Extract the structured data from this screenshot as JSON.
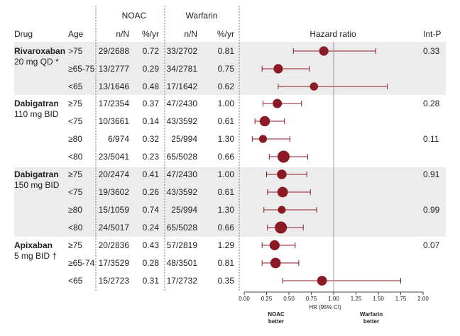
{
  "chart_data": {
    "type": "forest",
    "group_headers": {
      "noac": "NOAC",
      "warfarin": "Warfarin"
    },
    "columns": {
      "drug": "Drug",
      "age": "Age",
      "noac_n": "n/N",
      "noac_rate": "%/yr",
      "warf_n": "n/N",
      "warf_rate": "%/yr",
      "hr": "Hazard ratio",
      "intp": "Int-P"
    },
    "x_axis": {
      "ticks": [
        "0.00",
        "0.25",
        "0.50",
        "0.75",
        "1.00",
        "1.25",
        "1.50",
        "1.75",
        "2.00"
      ],
      "xlim": [
        0,
        2
      ],
      "reference": 1.0,
      "label": "HR (95% CI)",
      "left_note": [
        "NOAC",
        "better"
      ],
      "right_note": [
        "Warfarin",
        "better"
      ]
    },
    "marker_color": "#8b1a24",
    "band_color": "#ececec",
    "groups": [
      {
        "drug": "Rivaroxaban",
        "dose": "20 mg QD *",
        "shaded": true
      },
      {
        "drug": "Dabigatran",
        "dose": "110 mg BID",
        "shaded": false
      },
      {
        "drug": "Dabigatran",
        "dose": "150 mg BID",
        "shaded": true
      },
      {
        "drug": "Apixaban",
        "dose": "5 mg BID †",
        "shaded": false
      }
    ],
    "rows": [
      {
        "group": 0,
        "age": ">75",
        "noac_n": "29/2688",
        "noac_rate": "0.72",
        "warf_n": "33/2702",
        "warf_rate": "0.81",
        "hr": 0.89,
        "lo": 0.55,
        "hi": 1.47,
        "size": 0.62,
        "intp": "0.33"
      },
      {
        "group": 0,
        "age": "≥65-75",
        "noac_n": "13/2777",
        "noac_rate": "0.29",
        "warf_n": "34/2781",
        "warf_rate": "0.75",
        "hr": 0.38,
        "lo": 0.2,
        "hi": 0.73,
        "size": 0.62,
        "intp": ""
      },
      {
        "group": 0,
        "age": "<65",
        "noac_n": "13/1646",
        "noac_rate": "0.48",
        "warf_n": "17/1642",
        "warf_rate": "0.62",
        "hr": 0.78,
        "lo": 0.38,
        "hi": 1.6,
        "size": 0.45,
        "intp": ""
      },
      {
        "group": 1,
        "age": "≥75",
        "noac_n": "17/2354",
        "noac_rate": "0.37",
        "warf_n": "47/2430",
        "warf_rate": "1.00",
        "hr": 0.37,
        "lo": 0.21,
        "hi": 0.64,
        "size": 0.6,
        "intp": "0.28"
      },
      {
        "group": 1,
        "age": "<75",
        "noac_n": "10/3661",
        "noac_rate": "0.14",
        "warf_n": "43/3592",
        "warf_rate": "0.61",
        "hr": 0.23,
        "lo": 0.12,
        "hi": 0.45,
        "size": 0.75,
        "intp": ""
      },
      {
        "group": 1,
        "age": "≥80",
        "noac_n": "6/974",
        "noac_rate": "0.32",
        "warf_n": "25/994",
        "warf_rate": "1.30",
        "hr": 0.21,
        "lo": 0.09,
        "hi": 0.51,
        "size": 0.42,
        "intp": "0.11"
      },
      {
        "group": 1,
        "age": "<80",
        "noac_n": "23/5041",
        "noac_rate": "0.23",
        "warf_n": "65/5028",
        "warf_rate": "0.66",
        "hr": 0.44,
        "lo": 0.28,
        "hi": 0.71,
        "size": 1.0,
        "intp": ""
      },
      {
        "group": 2,
        "age": "≥75",
        "noac_n": "20/2474",
        "noac_rate": "0.41",
        "warf_n": "47/2430",
        "warf_rate": "1.00",
        "hr": 0.42,
        "lo": 0.25,
        "hi": 0.7,
        "size": 0.65,
        "intp": "0.91"
      },
      {
        "group": 2,
        "age": "<75",
        "noac_n": "19/3602",
        "noac_rate": "0.26",
        "warf_n": "43/3592",
        "warf_rate": "0.61",
        "hr": 0.43,
        "lo": 0.26,
        "hi": 0.74,
        "size": 0.78,
        "intp": ""
      },
      {
        "group": 2,
        "age": "≥80",
        "noac_n": "15/1059",
        "noac_rate": "0.74",
        "warf_n": "25/994",
        "warf_rate": "1.30",
        "hr": 0.42,
        "lo": 0.22,
        "hi": 0.81,
        "size": 0.4,
        "intp": "0.99"
      },
      {
        "group": 2,
        "age": "<80",
        "noac_n": "24/5017",
        "noac_rate": "0.24",
        "warf_n": "65/5028",
        "warf_rate": "0.66",
        "hr": 0.41,
        "lo": 0.26,
        "hi": 0.66,
        "size": 1.0,
        "intp": ""
      },
      {
        "group": 3,
        "age": "≥75",
        "noac_n": "20/2836",
        "noac_rate": "0.43",
        "warf_n": "57/2819",
        "warf_rate": "1.29",
        "hr": 0.34,
        "lo": 0.2,
        "hi": 0.57,
        "size": 0.72,
        "intp": "0.07"
      },
      {
        "group": 3,
        "age": "≥65-74",
        "noac_n": "17/3529",
        "noac_rate": "0.28",
        "warf_n": "48/3501",
        "warf_rate": "0.81",
        "hr": 0.35,
        "lo": 0.2,
        "hi": 0.61,
        "size": 0.78,
        "intp": ""
      },
      {
        "group": 3,
        "age": "<65",
        "noac_n": "15/2723",
        "noac_rate": "0.31",
        "warf_n": "17/2732",
        "warf_rate": "0.35",
        "hr": 0.87,
        "lo": 0.43,
        "hi": 1.75,
        "size": 0.68,
        "intp": ""
      }
    ]
  }
}
